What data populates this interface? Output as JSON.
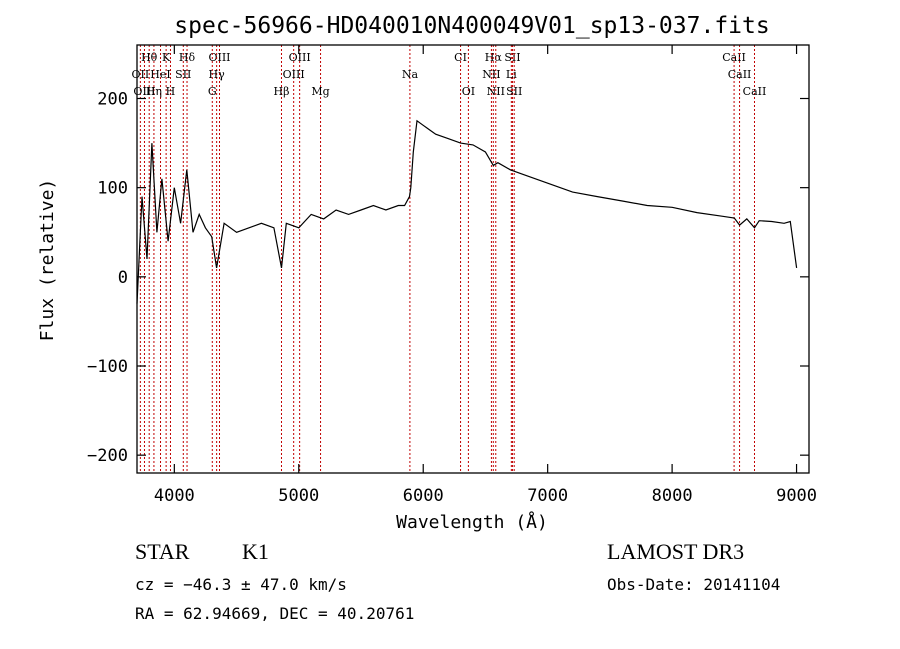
{
  "chart_data": {
    "type": "line",
    "title": "spec-56966-HD040010N400049V01_sp13-037.fits",
    "xlabel": "Wavelength (Å)",
    "ylabel": "Flux (relative)",
    "xlim": [
      3700,
      9100
    ],
    "ylim": [
      -220,
      260
    ],
    "xticks": [
      4000,
      5000,
      6000,
      7000,
      8000,
      9000
    ],
    "xtick_labels": [
      "4000",
      "5000",
      "6000",
      "7000",
      "8000",
      "9000"
    ],
    "yticks": [
      -200,
      -100,
      0,
      100,
      200
    ],
    "ytick_labels": [
      "−200",
      "−100",
      "0",
      "100",
      "200"
    ],
    "grid": false,
    "series": [
      {
        "name": "flux",
        "x": [
          3700,
          3740,
          3780,
          3820,
          3860,
          3900,
          3950,
          4000,
          4050,
          4100,
          4150,
          4200,
          4250,
          4300,
          4340,
          4400,
          4500,
          4600,
          4700,
          4800,
          4861,
          4900,
          5000,
          5100,
          5200,
          5300,
          5400,
          5500,
          5600,
          5700,
          5800,
          5850,
          5890,
          5900,
          5920,
          5950,
          6000,
          6050,
          6100,
          6200,
          6300,
          6400,
          6500,
          6563,
          6600,
          6700,
          6800,
          7000,
          7200,
          7400,
          7600,
          7800,
          8000,
          8200,
          8400,
          8500,
          8542,
          8600,
          8662,
          8700,
          8800,
          8900,
          8950,
          9000
        ],
        "y": [
          -30,
          90,
          20,
          150,
          50,
          110,
          40,
          100,
          60,
          120,
          50,
          70,
          55,
          45,
          10,
          60,
          50,
          55,
          60,
          55,
          10,
          60,
          55,
          70,
          65,
          75,
          70,
          75,
          80,
          75,
          80,
          80,
          90,
          100,
          140,
          175,
          170,
          165,
          160,
          155,
          150,
          148,
          140,
          125,
          128,
          120,
          115,
          105,
          95,
          90,
          85,
          80,
          78,
          72,
          68,
          66,
          58,
          65,
          55,
          63,
          62,
          60,
          62,
          10
        ]
      }
    ],
    "line_markers": [
      {
        "label": "Hθ",
        "x": 3798,
        "row": 1
      },
      {
        "label": "K",
        "x": 3934,
        "row": 1
      },
      {
        "label": "Hδ",
        "x": 4102,
        "row": 1
      },
      {
        "label": "OIII",
        "x": 4363,
        "row": 1
      },
      {
        "label": "OIII",
        "x": 5007,
        "row": 1
      },
      {
        "label": "CI",
        "x": 6300,
        "row": 1
      },
      {
        "label": "Hα",
        "x": 6563,
        "row": 1
      },
      {
        "label": "SII",
        "x": 6717,
        "row": 1
      },
      {
        "label": "CaII",
        "x": 8498,
        "row": 1
      },
      {
        "label": "OII",
        "x": 3727,
        "row": 2
      },
      {
        "label": "HeI",
        "x": 3889,
        "row": 2
      },
      {
        "label": "SII",
        "x": 4072,
        "row": 2
      },
      {
        "label": "Hγ",
        "x": 4340,
        "row": 2
      },
      {
        "label": "OIII",
        "x": 4959,
        "row": 2
      },
      {
        "label": "Na",
        "x": 5893,
        "row": 2
      },
      {
        "label": "NII",
        "x": 6548,
        "row": 2
      },
      {
        "label": "Li",
        "x": 6708,
        "row": 2
      },
      {
        "label": "CaII",
        "x": 8542,
        "row": 2
      },
      {
        "label": "OIII",
        "x": 3760,
        "row": 3
      },
      {
        "label": "Hη",
        "x": 3836,
        "row": 3
      },
      {
        "label": "H",
        "x": 3969,
        "row": 3
      },
      {
        "label": "G",
        "x": 4305,
        "row": 3
      },
      {
        "label": "Hβ",
        "x": 4861,
        "row": 3
      },
      {
        "label": "Mg",
        "x": 5175,
        "row": 3
      },
      {
        "label": "OI",
        "x": 6363,
        "row": 3
      },
      {
        "label": "NII",
        "x": 6583,
        "row": 3
      },
      {
        "label": "SII",
        "x": 6731,
        "row": 3
      },
      {
        "label": "CaII",
        "x": 8662,
        "row": 3
      }
    ]
  },
  "info": {
    "class_label": "STAR",
    "subclass": "K1",
    "survey": "LAMOST DR3",
    "cz": "cz = −46.3 ± 47.0 km/s",
    "obs_date": "Obs-Date: 20141104",
    "coords": "RA =  62.94669, DEC =  40.20761"
  }
}
